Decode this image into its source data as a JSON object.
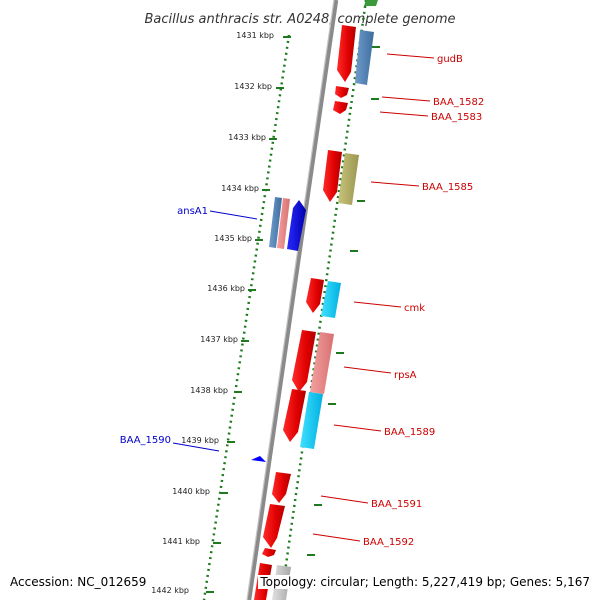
{
  "title": "Bacillus anthracis str. A0248, complete genome",
  "footer": {
    "accession": "Accession: NC_012659",
    "summary": "Topology: circular; Length: 5,227,419 bp; Genes: 5,167"
  },
  "ticks": [
    "1431 kbp",
    "1432 kbp",
    "1433 kbp",
    "1434 kbp",
    "1435 kbp",
    "1436 kbp",
    "1437 kbp",
    "1438 kbp",
    "1439 kbp",
    "1440 kbp",
    "1441 kbp",
    "1442 kbp"
  ],
  "genes": [
    {
      "name": "gudB",
      "color": "#cc0000"
    },
    {
      "name": "BAA_1582",
      "color": "#cc0000"
    },
    {
      "name": "BAA_1583",
      "color": "#cc0000"
    },
    {
      "name": "BAA_1585",
      "color": "#cc0000"
    },
    {
      "name": "ansA1",
      "color": "#0000cc"
    },
    {
      "name": "cmk",
      "color": "#cc0000"
    },
    {
      "name": "rpsA",
      "color": "#cc0000"
    },
    {
      "name": "BAA_1589",
      "color": "#cc0000"
    },
    {
      "name": "BAA_1590",
      "color": "#0000cc"
    },
    {
      "name": "BAA_1591",
      "color": "#cc0000"
    },
    {
      "name": "BAA_1592",
      "color": "#cc0000"
    }
  ],
  "colors": {
    "forward_strand": "#ff0000",
    "reverse_strand": "#0000ff",
    "backbone": "#888888",
    "tick_marks": "#2a8a2a"
  }
}
